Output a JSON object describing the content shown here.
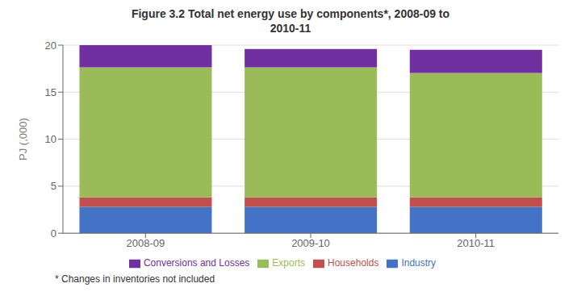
{
  "chart_data": {
    "type": "bar",
    "title": "Figure 3.2 Total net energy use by components*, 2008-09 to\n2010-11",
    "ylabel": "PJ (,000)",
    "footnote": "* Changes in inventories not included",
    "categories": [
      "2008-09",
      "2009-10",
      "2010-11"
    ],
    "series": [
      {
        "name": "Industry",
        "color": "#4472C4",
        "values": [
          2.8,
          2.8,
          2.8
        ]
      },
      {
        "name": "Households",
        "color": "#C0504D",
        "values": [
          1.0,
          1.0,
          1.0
        ]
      },
      {
        "name": "Exports",
        "color": "#9BBB59",
        "values": [
          13.85,
          13.85,
          13.25
        ]
      },
      {
        "name": "Conversions and Losses",
        "color": "#7030A0",
        "values": [
          2.35,
          1.95,
          2.45
        ]
      }
    ],
    "stacked": true,
    "ylim": [
      0,
      20
    ],
    "yticks": [
      0,
      5,
      10,
      15,
      20
    ],
    "grid": true,
    "legend": "bottom"
  }
}
